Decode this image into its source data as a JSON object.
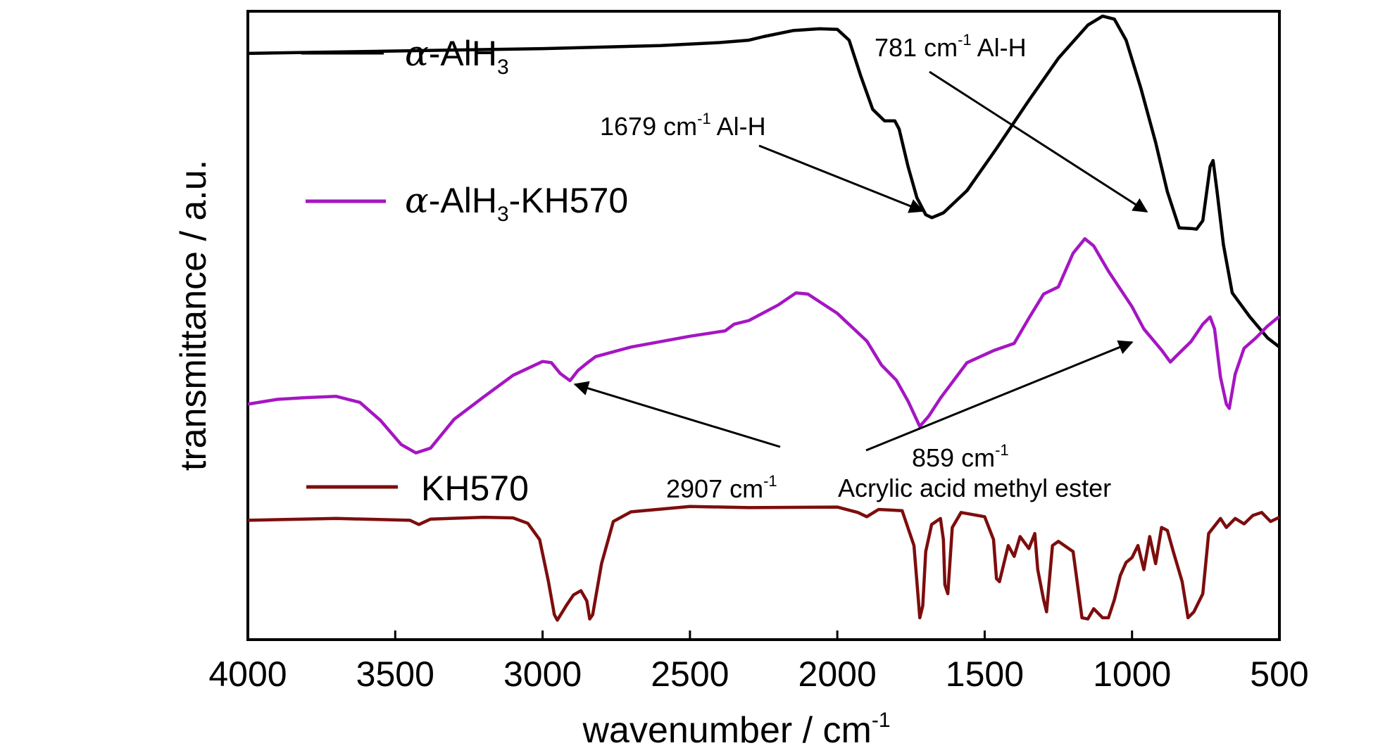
{
  "chart_data": {
    "type": "line",
    "title": "",
    "xlabel": "wavenumber / cm",
    "xlabel_sup": "-1",
    "ylabel": "transmittance / a.u.",
    "xlim": [
      4000,
      500
    ],
    "x_reversed": true,
    "y_ticks_shown": false,
    "grid": false,
    "xticks": [
      "4000",
      "3500",
      "3000",
      "2500",
      "2000",
      "1500",
      "1000",
      "500"
    ],
    "legend_position": "left",
    "series": [
      {
        "name": "α-AlH3",
        "name_parts": [
          "α",
          "-AlH",
          "3",
          ""
        ],
        "color": "#000000",
        "points": [
          [
            4000,
            0.958
          ],
          [
            3500,
            0.962
          ],
          [
            3000,
            0.966
          ],
          [
            2600,
            0.971
          ],
          [
            2400,
            0.976
          ],
          [
            2300,
            0.98
          ],
          [
            2250,
            0.986
          ],
          [
            2150,
            0.996
          ],
          [
            2060,
            0.999
          ],
          [
            2000,
            0.998
          ],
          [
            1960,
            0.98
          ],
          [
            1920,
            0.92
          ],
          [
            1880,
            0.865
          ],
          [
            1840,
            0.846
          ],
          [
            1805,
            0.846
          ],
          [
            1790,
            0.832
          ],
          [
            1760,
            0.77
          ],
          [
            1730,
            0.718
          ],
          [
            1700,
            0.69
          ],
          [
            1679,
            0.685
          ],
          [
            1640,
            0.693
          ],
          [
            1560,
            0.73
          ],
          [
            1460,
            0.8
          ],
          [
            1350,
            0.88
          ],
          [
            1250,
            0.95
          ],
          [
            1150,
            1.005
          ],
          [
            1100,
            1.02
          ],
          [
            1060,
            1.015
          ],
          [
            1020,
            0.98
          ],
          [
            970,
            0.9
          ],
          [
            920,
            0.81
          ],
          [
            880,
            0.728
          ],
          [
            840,
            0.668
          ],
          [
            800,
            0.667
          ],
          [
            781,
            0.666
          ],
          [
            760,
            0.68
          ],
          [
            735,
            0.77
          ],
          [
            725,
            0.78
          ],
          [
            712,
            0.73
          ],
          [
            690,
            0.64
          ],
          [
            660,
            0.56
          ],
          [
            600,
            0.52
          ],
          [
            540,
            0.485
          ],
          [
            500,
            0.47
          ]
        ]
      },
      {
        "name": "α-AlH3-KH570",
        "name_parts": [
          "α",
          "-AlH",
          "3",
          "-KH570"
        ],
        "color": "#a516c2",
        "points": [
          [
            4000,
            0.375
          ],
          [
            3900,
            0.383
          ],
          [
            3800,
            0.386
          ],
          [
            3700,
            0.388
          ],
          [
            3620,
            0.378
          ],
          [
            3550,
            0.348
          ],
          [
            3480,
            0.308
          ],
          [
            3430,
            0.294
          ],
          [
            3380,
            0.302
          ],
          [
            3300,
            0.35
          ],
          [
            3200,
            0.387
          ],
          [
            3100,
            0.423
          ],
          [
            3000,
            0.446
          ],
          [
            2970,
            0.444
          ],
          [
            2940,
            0.426
          ],
          [
            2907,
            0.414
          ],
          [
            2880,
            0.431
          ],
          [
            2850,
            0.443
          ],
          [
            2820,
            0.454
          ],
          [
            2700,
            0.47
          ],
          [
            2500,
            0.488
          ],
          [
            2380,
            0.497
          ],
          [
            2350,
            0.508
          ],
          [
            2300,
            0.514
          ],
          [
            2200,
            0.54
          ],
          [
            2140,
            0.56
          ],
          [
            2100,
            0.558
          ],
          [
            2000,
            0.526
          ],
          [
            1900,
            0.48
          ],
          [
            1850,
            0.44
          ],
          [
            1800,
            0.415
          ],
          [
            1760,
            0.38
          ],
          [
            1720,
            0.338
          ],
          [
            1690,
            0.355
          ],
          [
            1650,
            0.385
          ],
          [
            1560,
            0.444
          ],
          [
            1470,
            0.464
          ],
          [
            1400,
            0.476
          ],
          [
            1350,
            0.518
          ],
          [
            1300,
            0.558
          ],
          [
            1250,
            0.57
          ],
          [
            1200,
            0.626
          ],
          [
            1160,
            0.65
          ],
          [
            1130,
            0.638
          ],
          [
            1080,
            0.596
          ],
          [
            1000,
            0.537
          ],
          [
            960,
            0.5
          ],
          [
            900,
            0.465
          ],
          [
            870,
            0.445
          ],
          [
            850,
            0.455
          ],
          [
            800,
            0.479
          ],
          [
            760,
            0.508
          ],
          [
            735,
            0.52
          ],
          [
            720,
            0.5
          ],
          [
            700,
            0.42
          ],
          [
            680,
            0.375
          ],
          [
            670,
            0.368
          ],
          [
            650,
            0.425
          ],
          [
            620,
            0.468
          ],
          [
            580,
            0.485
          ],
          [
            540,
            0.505
          ],
          [
            500,
            0.521
          ]
        ]
      },
      {
        "name": "KH570",
        "name_parts": [
          "",
          "KH570",
          "",
          ""
        ],
        "color": "#7d0d0d",
        "points": [
          [
            4000,
            0.182
          ],
          [
            3700,
            0.185
          ],
          [
            3450,
            0.182
          ],
          [
            3420,
            0.175
          ],
          [
            3380,
            0.184
          ],
          [
            3200,
            0.187
          ],
          [
            3100,
            0.186
          ],
          [
            3050,
            0.177
          ],
          [
            3010,
            0.15
          ],
          [
            2980,
            0.08
          ],
          [
            2960,
            0.025
          ],
          [
            2950,
            0.016
          ],
          [
            2920,
            0.04
          ],
          [
            2895,
            0.058
          ],
          [
            2870,
            0.065
          ],
          [
            2850,
            0.048
          ],
          [
            2840,
            0.018
          ],
          [
            2830,
            0.025
          ],
          [
            2800,
            0.11
          ],
          [
            2760,
            0.18
          ],
          [
            2700,
            0.196
          ],
          [
            2500,
            0.205
          ],
          [
            2300,
            0.203
          ],
          [
            2000,
            0.204
          ],
          [
            1930,
            0.195
          ],
          [
            1900,
            0.188
          ],
          [
            1860,
            0.2
          ],
          [
            1780,
            0.198
          ],
          [
            1740,
            0.14
          ],
          [
            1720,
            0.02
          ],
          [
            1710,
            0.04
          ],
          [
            1700,
            0.13
          ],
          [
            1680,
            0.175
          ],
          [
            1650,
            0.185
          ],
          [
            1640,
            0.15
          ],
          [
            1635,
            0.075
          ],
          [
            1625,
            0.06
          ],
          [
            1610,
            0.17
          ],
          [
            1580,
            0.195
          ],
          [
            1500,
            0.188
          ],
          [
            1470,
            0.15
          ],
          [
            1460,
            0.085
          ],
          [
            1450,
            0.08
          ],
          [
            1420,
            0.14
          ],
          [
            1400,
            0.122
          ],
          [
            1380,
            0.155
          ],
          [
            1350,
            0.135
          ],
          [
            1330,
            0.16
          ],
          [
            1320,
            0.1
          ],
          [
            1300,
            0.05
          ],
          [
            1290,
            0.03
          ],
          [
            1270,
            0.14
          ],
          [
            1250,
            0.147
          ],
          [
            1200,
            0.13
          ],
          [
            1170,
            0.02
          ],
          [
            1150,
            0.018
          ],
          [
            1130,
            0.035
          ],
          [
            1100,
            0.02
          ],
          [
            1080,
            0.02
          ],
          [
            1060,
            0.05
          ],
          [
            1040,
            0.09
          ],
          [
            1020,
            0.112
          ],
          [
            1000,
            0.12
          ],
          [
            980,
            0.14
          ],
          [
            960,
            0.1
          ],
          [
            940,
            0.155
          ],
          [
            920,
            0.11
          ],
          [
            900,
            0.17
          ],
          [
            880,
            0.165
          ],
          [
            860,
            0.13
          ],
          [
            830,
            0.08
          ],
          [
            810,
            0.02
          ],
          [
            790,
            0.03
          ],
          [
            760,
            0.06
          ],
          [
            740,
            0.16
          ],
          [
            700,
            0.185
          ],
          [
            680,
            0.17
          ],
          [
            650,
            0.185
          ],
          [
            620,
            0.176
          ],
          [
            590,
            0.19
          ],
          [
            560,
            0.195
          ],
          [
            530,
            0.18
          ],
          [
            500,
            0.187
          ]
        ]
      }
    ],
    "annotations": [
      {
        "id": "ann-781",
        "text": "781 cm",
        "sup": "-1",
        "suffix": " Al-H",
        "arrow_x": 950,
        "arrow_y": 0.695
      },
      {
        "id": "ann-1679",
        "text": "1679 cm",
        "sup": "-1",
        "suffix": "  Al-H",
        "arrow_x": 1710,
        "arrow_y": 0.696
      },
      {
        "id": "ann-2907",
        "text": "2907 cm",
        "sup": "-1",
        "suffix": "",
        "arrow_x": 2890,
        "arrow_y": 0.408
      },
      {
        "id": "ann-859",
        "text": "859 cm",
        "sup": "-1",
        "suffix": "",
        "arrow_x": 1000,
        "arrow_y": 0.478
      },
      {
        "id": "ann-acrylic",
        "text": "Acrylic acid methyl ester",
        "sup": "",
        "suffix": ""
      }
    ]
  }
}
